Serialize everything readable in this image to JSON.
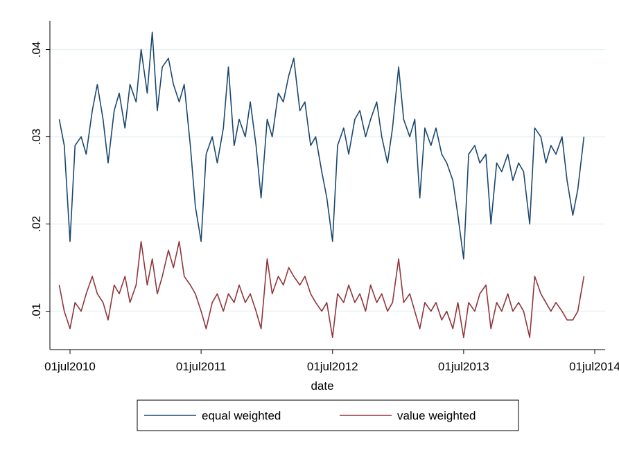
{
  "chart_data": {
    "type": "line",
    "x_label": "date",
    "x": [
      "2010-06-01",
      "2010-06-15",
      "2010-07-01",
      "2010-07-15",
      "2010-08-01",
      "2010-08-15",
      "2010-09-01",
      "2010-09-15",
      "2010-10-01",
      "2010-10-15",
      "2010-11-01",
      "2010-11-15",
      "2010-12-01",
      "2010-12-15",
      "2011-01-01",
      "2011-01-15",
      "2011-02-01",
      "2011-02-15",
      "2011-03-01",
      "2011-03-15",
      "2011-04-01",
      "2011-04-15",
      "2011-05-01",
      "2011-05-15",
      "2011-06-01",
      "2011-06-15",
      "2011-07-01",
      "2011-07-15",
      "2011-08-01",
      "2011-08-15",
      "2011-09-01",
      "2011-09-15",
      "2011-10-01",
      "2011-10-15",
      "2011-11-01",
      "2011-11-15",
      "2011-12-01",
      "2011-12-15",
      "2012-01-01",
      "2012-01-15",
      "2012-02-01",
      "2012-02-15",
      "2012-03-01",
      "2012-03-15",
      "2012-04-01",
      "2012-04-15",
      "2012-05-01",
      "2012-05-15",
      "2012-06-01",
      "2012-06-15",
      "2012-07-01",
      "2012-07-15",
      "2012-08-01",
      "2012-08-15",
      "2012-09-01",
      "2012-09-15",
      "2012-10-01",
      "2012-10-15",
      "2012-11-01",
      "2012-11-15",
      "2012-12-01",
      "2012-12-15",
      "2013-01-01",
      "2013-01-15",
      "2013-02-01",
      "2013-02-15",
      "2013-03-01",
      "2013-03-15",
      "2013-04-01",
      "2013-04-15",
      "2013-05-01",
      "2013-05-15",
      "2013-06-01",
      "2013-06-15",
      "2013-07-01",
      "2013-07-15",
      "2013-08-01",
      "2013-08-15",
      "2013-09-01",
      "2013-09-15",
      "2013-10-01",
      "2013-10-15",
      "2013-11-01",
      "2013-11-15",
      "2013-12-01",
      "2013-12-15",
      "2014-01-01",
      "2014-01-15",
      "2014-02-01",
      "2014-02-15",
      "2014-03-01",
      "2014-03-15",
      "2014-04-01",
      "2014-04-15",
      "2014-05-01",
      "2014-05-15",
      "2014-06-01"
    ],
    "series": [
      {
        "name": "equal weighted",
        "color": "#1a476f",
        "values": [
          0.032,
          0.029,
          0.018,
          0.029,
          0.03,
          0.028,
          0.033,
          0.036,
          0.032,
          0.027,
          0.033,
          0.035,
          0.031,
          0.036,
          0.034,
          0.04,
          0.035,
          0.042,
          0.033,
          0.038,
          0.039,
          0.036,
          0.034,
          0.036,
          0.029,
          0.022,
          0.018,
          0.028,
          0.03,
          0.027,
          0.031,
          0.038,
          0.029,
          0.032,
          0.03,
          0.034,
          0.029,
          0.023,
          0.032,
          0.03,
          0.035,
          0.034,
          0.037,
          0.039,
          0.033,
          0.034,
          0.029,
          0.03,
          0.026,
          0.023,
          0.018,
          0.029,
          0.031,
          0.028,
          0.032,
          0.033,
          0.03,
          0.032,
          0.034,
          0.03,
          0.027,
          0.031,
          0.038,
          0.032,
          0.03,
          0.032,
          0.023,
          0.031,
          0.029,
          0.031,
          0.028,
          0.027,
          0.025,
          0.021,
          0.016,
          0.028,
          0.029,
          0.027,
          0.028,
          0.02,
          0.027,
          0.026,
          0.028,
          0.025,
          0.027,
          0.026,
          0.02,
          0.031,
          0.03,
          0.027,
          0.029,
          0.028,
          0.03,
          0.025,
          0.021,
          0.024,
          0.03
        ]
      },
      {
        "name": "value weighted",
        "color": "#90353b",
        "values": [
          0.013,
          0.01,
          0.008,
          0.011,
          0.01,
          0.012,
          0.014,
          0.012,
          0.011,
          0.009,
          0.013,
          0.012,
          0.014,
          0.011,
          0.013,
          0.018,
          0.013,
          0.016,
          0.012,
          0.014,
          0.017,
          0.015,
          0.018,
          0.014,
          0.013,
          0.012,
          0.01,
          0.008,
          0.011,
          0.012,
          0.01,
          0.012,
          0.011,
          0.013,
          0.011,
          0.012,
          0.01,
          0.008,
          0.016,
          0.012,
          0.014,
          0.013,
          0.015,
          0.014,
          0.013,
          0.014,
          0.012,
          0.011,
          0.01,
          0.011,
          0.007,
          0.012,
          0.011,
          0.013,
          0.011,
          0.012,
          0.01,
          0.013,
          0.011,
          0.012,
          0.01,
          0.011,
          0.016,
          0.011,
          0.012,
          0.01,
          0.008,
          0.011,
          0.01,
          0.011,
          0.009,
          0.01,
          0.008,
          0.011,
          0.007,
          0.011,
          0.01,
          0.012,
          0.013,
          0.008,
          0.011,
          0.01,
          0.012,
          0.01,
          0.011,
          0.01,
          0.007,
          0.014,
          0.012,
          0.011,
          0.01,
          0.011,
          0.01,
          0.009,
          0.009,
          0.01,
          0.014
        ]
      }
    ],
    "xlim": [
      "2010-05-06",
      "2014-07-30"
    ],
    "xticks": [
      {
        "value": "2010-07-01",
        "label": "01jul2010"
      },
      {
        "value": "2011-07-01",
        "label": "01jul2011"
      },
      {
        "value": "2012-07-01",
        "label": "01jul2012"
      },
      {
        "value": "2013-07-01",
        "label": "01jul2013"
      },
      {
        "value": "2014-07-01",
        "label": "01jul2014"
      }
    ],
    "ylim": [
      0.0056,
      0.0433
    ],
    "yticks": [
      {
        "value": 0.01,
        "label": ".01"
      },
      {
        "value": 0.02,
        "label": ".02"
      },
      {
        "value": 0.03,
        "label": ".03"
      },
      {
        "value": 0.04,
        "label": ".04"
      }
    ],
    "grid": true,
    "legend_position": "bottom"
  }
}
